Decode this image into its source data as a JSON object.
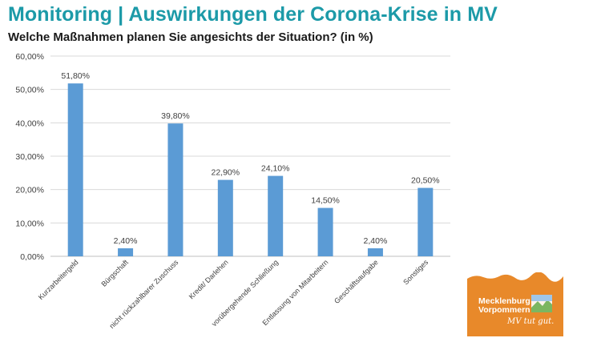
{
  "header": {
    "title": "Monitoring | Auswirkungen der Corona-Krise in MV",
    "subtitle": "Welche Maßnahmen planen Sie angesichts der Situation? (in %)"
  },
  "chart_data": {
    "type": "bar",
    "categories": [
      "Kurzarbeitergeld",
      "Bürgschaft",
      "nicht rückzahlbarer Zuschuss",
      "Kredit/ Darlehen",
      "vorübergehende Schließung",
      "Entlassung von Mitarbeitern",
      "Geschäftsaufgabe",
      "Sonstiges"
    ],
    "values": [
      51.8,
      2.4,
      39.8,
      22.9,
      24.1,
      14.5,
      2.4,
      20.5
    ],
    "value_labels": [
      "51,80%",
      "2,40%",
      "39,80%",
      "22,90%",
      "24,10%",
      "14,50%",
      "2,40%",
      "20,50%"
    ],
    "y_ticks": [
      0,
      10,
      20,
      30,
      40,
      50,
      60
    ],
    "y_tick_labels": [
      "0,00%",
      "10,00%",
      "20,00%",
      "30,00%",
      "40,00%",
      "50,00%",
      "60,00%"
    ],
    "ylim": [
      0,
      60
    ],
    "grid": true,
    "legend": "none",
    "bar_color": "#5b9bd5"
  },
  "logo": {
    "line1": "Mecklenburg",
    "line2": "Vorpommern",
    "slogan": "MV tut gut.",
    "color": "#e8892a"
  }
}
